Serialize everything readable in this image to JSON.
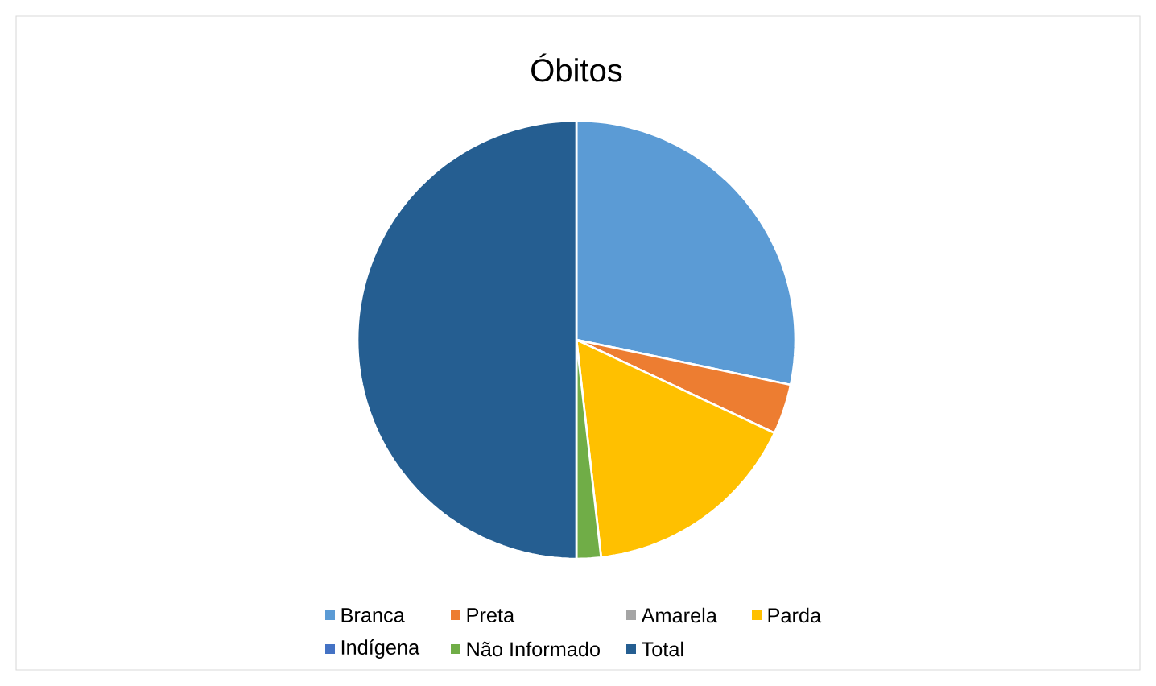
{
  "chart_data": {
    "type": "pie",
    "title": "Óbitos",
    "categories": [
      "Branca",
      "Preta",
      "Amarela",
      "Parda",
      "Indígena",
      "Não Informado",
      "Total"
    ],
    "values": [
      28.3,
      3.7,
      0,
      16.2,
      0,
      1.8,
      50
    ],
    "colors": [
      "#5b9bd5",
      "#ed7d31",
      "#a5a5a5",
      "#ffc000",
      "#4472c4",
      "#70ad47",
      "#255e91"
    ],
    "legend": "bottom"
  }
}
